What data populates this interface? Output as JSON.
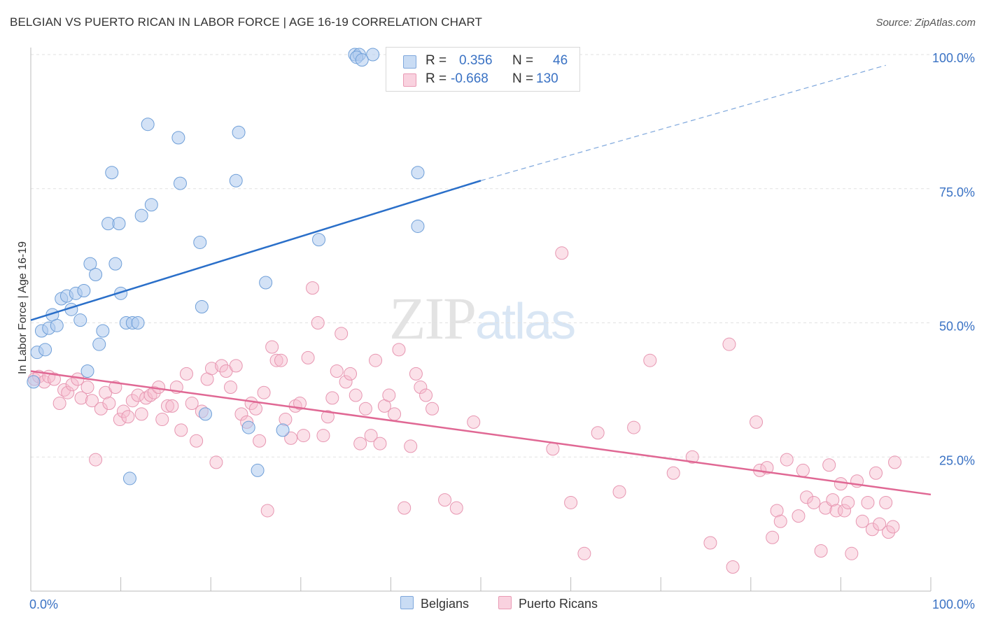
{
  "title": "BELGIAN VS PUERTO RICAN IN LABOR FORCE | AGE 16-19 CORRELATION CHART",
  "source": "Source: ZipAtlas.com",
  "watermark": {
    "zip": "ZIP",
    "atlas": "atlas"
  },
  "legend": {
    "rows": [
      {
        "r_label": "R =",
        "r_value": "0.356",
        "n_label": "N =",
        "n_value": "46"
      },
      {
        "r_label": "R =",
        "r_value": "-0.668",
        "n_label": "N =",
        "n_value": "130"
      }
    ]
  },
  "bottom_legend": {
    "belgians": "Belgians",
    "puerto_ricans": "Puerto Ricans"
  },
  "chart_data": {
    "type": "scatter",
    "title": "BELGIAN VS PUERTO RICAN IN LABOR FORCE | AGE 16-19 CORRELATION CHART",
    "xlabel": "",
    "ylabel": "In Labor Force | Age 16-19",
    "xlim": [
      0,
      100
    ],
    "ylim": [
      0,
      100
    ],
    "x_tick_labels": [
      "0.0%",
      "100.0%"
    ],
    "y_tick_labels": [
      "25.0%",
      "50.0%",
      "75.0%",
      "100.0%"
    ],
    "y_ticks": [
      25,
      50,
      75,
      100
    ],
    "grid": true,
    "legend_placement": "top-center",
    "colors": {
      "belgians_fill": "#aecbee",
      "belgians_line": "#2a6fc9",
      "puerto_ricans_fill": "#f6bccf",
      "puerto_ricans_line": "#e06894",
      "axis_label": "#3a72c4"
    },
    "series": [
      {
        "name": "Belgians",
        "r": 0.356,
        "n": 46,
        "trend": {
          "x": [
            0,
            50
          ],
          "y": [
            50.5,
            76.5
          ],
          "dashed_to": [
            95,
            98
          ]
        },
        "points": [
          [
            0.7,
            44.5
          ],
          [
            1.2,
            48.5
          ],
          [
            1.6,
            45
          ],
          [
            2.0,
            49
          ],
          [
            2.4,
            51.5
          ],
          [
            2.9,
            49.5
          ],
          [
            3.4,
            54.5
          ],
          [
            4.0,
            55
          ],
          [
            4.5,
            52.5
          ],
          [
            5.0,
            55.5
          ],
          [
            5.5,
            50.5
          ],
          [
            5.9,
            56
          ],
          [
            6.3,
            41
          ],
          [
            6.6,
            61
          ],
          [
            7.2,
            59
          ],
          [
            7.6,
            46
          ],
          [
            8.0,
            48.5
          ],
          [
            8.6,
            68.5
          ],
          [
            9.0,
            78
          ],
          [
            9.4,
            61
          ],
          [
            9.8,
            68.5
          ],
          [
            10.0,
            55.5
          ],
          [
            10.6,
            50
          ],
          [
            11.3,
            50
          ],
          [
            11.9,
            50
          ],
          [
            12.3,
            70
          ],
          [
            13.0,
            87
          ],
          [
            13.4,
            72
          ],
          [
            16.4,
            84.5
          ],
          [
            16.6,
            76
          ],
          [
            18.8,
            65
          ],
          [
            19.0,
            53
          ],
          [
            19.4,
            33
          ],
          [
            22.8,
            76.5
          ],
          [
            23.1,
            85.5
          ],
          [
            24.2,
            30.5
          ],
          [
            25.2,
            22.5
          ],
          [
            26.1,
            57.5
          ],
          [
            28.0,
            30
          ],
          [
            32.0,
            65.5
          ],
          [
            36.0,
            100
          ],
          [
            36.5,
            100
          ],
          [
            36.2,
            99.5
          ],
          [
            38.0,
            100
          ],
          [
            36.8,
            99
          ],
          [
            43.0,
            68
          ],
          [
            43.0,
            78
          ],
          [
            11.0,
            21
          ],
          [
            0.3,
            39
          ]
        ]
      },
      {
        "name": "Puerto Ricans",
        "r": -0.668,
        "n": 130,
        "trend": {
          "x": [
            0,
            100
          ],
          "y": [
            41,
            18
          ]
        },
        "points": [
          [
            0.4,
            39.5
          ],
          [
            0.9,
            40
          ],
          [
            1.5,
            39
          ],
          [
            2.0,
            40
          ],
          [
            2.6,
            39.5
          ],
          [
            3.2,
            35
          ],
          [
            3.7,
            37.5
          ],
          [
            4.1,
            37
          ],
          [
            4.6,
            38.5
          ],
          [
            5.2,
            39.5
          ],
          [
            5.6,
            36
          ],
          [
            6.3,
            38
          ],
          [
            6.8,
            35.5
          ],
          [
            7.2,
            24.5
          ],
          [
            7.8,
            34
          ],
          [
            8.3,
            37
          ],
          [
            8.7,
            35
          ],
          [
            9.4,
            38
          ],
          [
            9.9,
            32
          ],
          [
            10.3,
            33.5
          ],
          [
            10.8,
            32.5
          ],
          [
            11.3,
            35.5
          ],
          [
            11.9,
            36.5
          ],
          [
            12.3,
            33
          ],
          [
            12.8,
            36
          ],
          [
            13.3,
            36.5
          ],
          [
            13.7,
            37
          ],
          [
            14.2,
            38
          ],
          [
            14.6,
            32
          ],
          [
            15.2,
            34.5
          ],
          [
            15.7,
            34.5
          ],
          [
            16.2,
            38
          ],
          [
            16.7,
            30
          ],
          [
            17.3,
            40.5
          ],
          [
            17.9,
            35
          ],
          [
            18.4,
            28
          ],
          [
            19.0,
            33.5
          ],
          [
            19.6,
            39.5
          ],
          [
            20.1,
            41.5
          ],
          [
            20.6,
            24
          ],
          [
            21.2,
            42
          ],
          [
            21.7,
            41
          ],
          [
            22.2,
            38
          ],
          [
            22.8,
            42
          ],
          [
            23.4,
            33
          ],
          [
            24.0,
            31.5
          ],
          [
            24.5,
            35
          ],
          [
            25.0,
            34
          ],
          [
            25.4,
            28
          ],
          [
            25.9,
            37
          ],
          [
            26.3,
            15
          ],
          [
            26.8,
            45.5
          ],
          [
            27.3,
            43
          ],
          [
            27.8,
            43
          ],
          [
            28.3,
            32
          ],
          [
            28.9,
            28.5
          ],
          [
            29.4,
            34.5
          ],
          [
            29.9,
            35
          ],
          [
            30.3,
            29
          ],
          [
            30.8,
            43.5
          ],
          [
            31.3,
            56.5
          ],
          [
            31.9,
            50
          ],
          [
            32.5,
            29
          ],
          [
            33.0,
            32.5
          ],
          [
            33.5,
            36
          ],
          [
            34.0,
            41
          ],
          [
            34.5,
            48
          ],
          [
            35.0,
            39
          ],
          [
            35.5,
            40.5
          ],
          [
            36.1,
            36.5
          ],
          [
            36.6,
            27.5
          ],
          [
            37.2,
            34
          ],
          [
            37.8,
            29
          ],
          [
            38.3,
            43
          ],
          [
            38.8,
            27.5
          ],
          [
            39.3,
            34.5
          ],
          [
            39.8,
            36.5
          ],
          [
            40.4,
            33
          ],
          [
            40.9,
            45
          ],
          [
            41.5,
            15.5
          ],
          [
            42.2,
            27
          ],
          [
            42.8,
            40.5
          ],
          [
            43.3,
            38
          ],
          [
            43.9,
            36.5
          ],
          [
            44.6,
            34
          ],
          [
            46.0,
            17
          ],
          [
            47.3,
            15.5
          ],
          [
            49.2,
            31.5
          ],
          [
            58.0,
            26.5
          ],
          [
            59.0,
            63
          ],
          [
            60.0,
            16.5
          ],
          [
            61.5,
            7
          ],
          [
            63.0,
            29.5
          ],
          [
            65.4,
            18.5
          ],
          [
            67.0,
            30.5
          ],
          [
            68.8,
            43
          ],
          [
            71.4,
            22
          ],
          [
            73.5,
            25
          ],
          [
            75.5,
            9
          ],
          [
            77.6,
            46
          ],
          [
            78.0,
            4.5
          ],
          [
            80.6,
            31.5
          ],
          [
            81.0,
            22.5
          ],
          [
            81.8,
            23
          ],
          [
            82.4,
            10
          ],
          [
            82.9,
            15
          ],
          [
            83.3,
            13
          ],
          [
            84.0,
            24.5
          ],
          [
            85.3,
            14
          ],
          [
            85.8,
            22.5
          ],
          [
            86.2,
            17.5
          ],
          [
            87.0,
            16.5
          ],
          [
            87.8,
            7.5
          ],
          [
            88.3,
            15.5
          ],
          [
            88.7,
            23.5
          ],
          [
            89.1,
            17
          ],
          [
            89.5,
            15
          ],
          [
            90.0,
            20
          ],
          [
            90.4,
            15
          ],
          [
            90.8,
            16.5
          ],
          [
            91.2,
            7
          ],
          [
            91.8,
            20.5
          ],
          [
            92.4,
            13
          ],
          [
            93.0,
            16.5
          ],
          [
            93.5,
            11.5
          ],
          [
            93.9,
            22
          ],
          [
            94.3,
            12.5
          ],
          [
            95.0,
            16.5
          ],
          [
            95.3,
            11
          ],
          [
            95.8,
            12
          ],
          [
            96.0,
            24
          ]
        ]
      }
    ]
  }
}
